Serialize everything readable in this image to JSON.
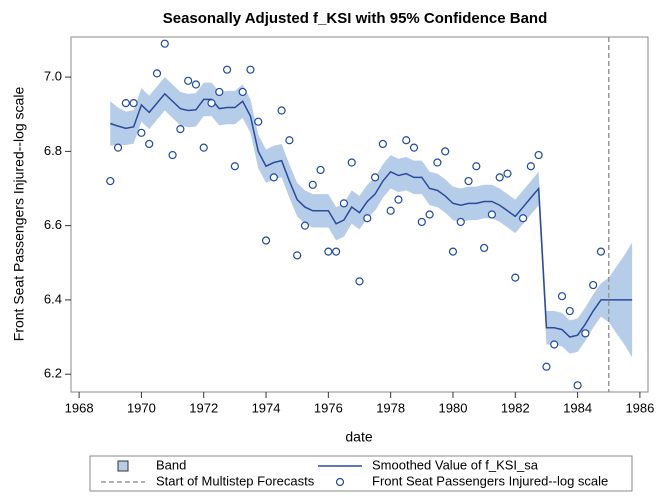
{
  "chart_data": {
    "type": "line",
    "title": "Seasonally Adjusted f_KSI with 95% Confidence Band",
    "x_label": "date",
    "y_label": "Front Seat Passengers Injured--log scale",
    "xlim": [
      1967.74,
      1986.26
    ],
    "ylim": [
      6.152,
      7.108
    ],
    "xticks": [
      1968,
      1970,
      1972,
      1974,
      1976,
      1978,
      1980,
      1982,
      1984,
      1986
    ],
    "yticks": [
      6.2,
      6.4,
      6.6,
      6.8,
      {
        "value": 7,
        "label": "7.0"
      }
    ],
    "x": [
      1969,
      1969.25,
      1969.5,
      1969.75,
      1970,
      1970.25,
      1970.5,
      1970.75,
      1971,
      1971.25,
      1971.5,
      1971.75,
      1972,
      1972.25,
      1972.5,
      1972.75,
      1973,
      1973.25,
      1973.5,
      1973.75,
      1974,
      1974.25,
      1974.5,
      1974.75,
      1975,
      1975.25,
      1975.5,
      1975.75,
      1976,
      1976.25,
      1976.5,
      1976.75,
      1977,
      1977.25,
      1977.5,
      1977.75,
      1978,
      1978.25,
      1978.5,
      1978.75,
      1979,
      1979.25,
      1979.5,
      1979.75,
      1980,
      1980.25,
      1980.5,
      1980.75,
      1981,
      1981.25,
      1981.5,
      1981.75,
      1982,
      1982.25,
      1982.5,
      1982.75,
      1983,
      1983.25,
      1983.5,
      1983.75,
      1984,
      1984.25,
      1984.5,
      1984.75,
      1985,
      1985.25,
      1985.5,
      1985.75
    ],
    "band": {
      "name": "Band",
      "color": "#b6cde9",
      "lower": [
        6.815,
        6.818,
        6.817,
        6.821,
        6.88,
        6.86,
        6.885,
        6.91,
        6.89,
        6.87,
        6.865,
        6.867,
        6.895,
        6.895,
        6.87,
        6.873,
        6.873,
        6.89,
        6.85,
        6.755,
        6.715,
        6.725,
        6.73,
        6.675,
        6.625,
        6.605,
        6.595,
        6.595,
        6.595,
        6.56,
        6.57,
        6.605,
        6.59,
        6.62,
        6.64,
        6.675,
        6.7,
        6.69,
        6.695,
        6.685,
        6.685,
        6.655,
        6.65,
        6.635,
        6.615,
        6.61,
        6.615,
        6.615,
        6.62,
        6.62,
        6.61,
        6.595,
        6.58,
        6.605,
        6.63,
        6.655,
        6.28,
        6.28,
        6.275,
        6.255,
        6.26,
        6.29,
        6.325,
        6.355,
        6.34,
        6.31,
        6.28,
        6.245
      ],
      "upper": [
        6.935,
        6.918,
        6.907,
        6.911,
        6.97,
        6.95,
        6.975,
        7.0,
        6.98,
        6.96,
        6.955,
        6.957,
        6.985,
        6.985,
        6.96,
        6.963,
        6.963,
        6.98,
        6.94,
        6.845,
        6.805,
        6.815,
        6.82,
        6.765,
        6.715,
        6.695,
        6.685,
        6.685,
        6.685,
        6.65,
        6.66,
        6.695,
        6.68,
        6.71,
        6.73,
        6.765,
        6.79,
        6.78,
        6.785,
        6.775,
        6.775,
        6.745,
        6.74,
        6.725,
        6.705,
        6.7,
        6.705,
        6.705,
        6.71,
        6.71,
        6.7,
        6.685,
        6.67,
        6.695,
        6.72,
        6.745,
        6.37,
        6.37,
        6.365,
        6.345,
        6.35,
        6.38,
        6.415,
        6.445,
        6.46,
        6.49,
        6.52,
        6.555
      ]
    },
    "smoothed": {
      "name": "Smoothed Value of f_KSI_sa",
      "color": "#2a4b9b",
      "values": [
        6.875,
        6.868,
        6.862,
        6.866,
        6.925,
        6.905,
        6.93,
        6.955,
        6.935,
        6.915,
        6.91,
        6.912,
        6.94,
        6.94,
        6.915,
        6.918,
        6.918,
        6.935,
        6.895,
        6.8,
        6.76,
        6.77,
        6.775,
        6.72,
        6.67,
        6.65,
        6.64,
        6.64,
        6.64,
        6.605,
        6.615,
        6.65,
        6.635,
        6.665,
        6.685,
        6.72,
        6.745,
        6.735,
        6.74,
        6.73,
        6.73,
        6.7,
        6.695,
        6.68,
        6.66,
        6.655,
        6.66,
        6.66,
        6.665,
        6.665,
        6.655,
        6.64,
        6.625,
        6.65,
        6.675,
        6.7,
        6.325,
        6.325,
        6.32,
        6.3,
        6.305,
        6.335,
        6.37,
        6.4,
        6.4,
        6.4,
        6.4,
        6.4
      ]
    },
    "observed": {
      "name": "Front Seat Passengers Injured--log scale",
      "color": "#1f4a9c",
      "x": [
        1969,
        1969.25,
        1969.5,
        1969.75,
        1970,
        1970.25,
        1970.5,
        1970.75,
        1971,
        1971.25,
        1971.5,
        1971.75,
        1972,
        1972.25,
        1972.5,
        1972.75,
        1973,
        1973.25,
        1973.5,
        1973.75,
        1974,
        1974.25,
        1974.5,
        1974.75,
        1975,
        1975.25,
        1975.5,
        1975.75,
        1976,
        1976.25,
        1976.5,
        1976.75,
        1977,
        1977.25,
        1977.5,
        1977.75,
        1978,
        1978.25,
        1978.5,
        1978.75,
        1979,
        1979.25,
        1979.5,
        1979.75,
        1980,
        1980.25,
        1980.5,
        1980.75,
        1981,
        1981.25,
        1981.5,
        1981.75,
        1982,
        1982.25,
        1982.5,
        1982.75,
        1983,
        1983.25,
        1983.5,
        1983.75,
        1984,
        1984.25,
        1984.5,
        1984.75
      ],
      "values": [
        6.72,
        6.81,
        6.93,
        6.93,
        6.85,
        6.82,
        7.01,
        7.09,
        6.79,
        6.86,
        6.99,
        6.98,
        6.81,
        6.93,
        6.96,
        7.02,
        6.76,
        6.96,
        7.02,
        6.88,
        6.56,
        6.73,
        6.91,
        6.83,
        6.52,
        6.6,
        6.71,
        6.75,
        6.53,
        6.53,
        6.66,
        6.77,
        6.45,
        6.62,
        6.73,
        6.82,
        6.64,
        6.67,
        6.83,
        6.81,
        6.61,
        6.63,
        6.77,
        6.8,
        6.53,
        6.61,
        6.72,
        6.76,
        6.54,
        6.63,
        6.73,
        6.74,
        6.46,
        6.62,
        6.76,
        6.79,
        6.22,
        6.28,
        6.41,
        6.37,
        6.17,
        6.31,
        6.44,
        6.53
      ]
    },
    "reference": {
      "name": "Start of Multistep Forecasts",
      "x": 1985,
      "color": "#9a9a9a"
    }
  }
}
